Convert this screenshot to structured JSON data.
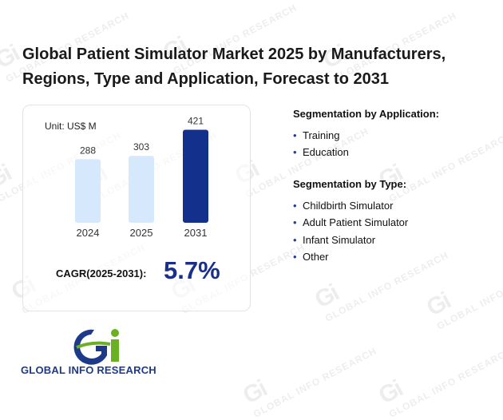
{
  "title": "Global Patient Simulator Market 2025 by Manufacturers, Regions, Type and Application, Forecast to 2031",
  "unit_label": "Unit: US$ M",
  "chart_data": {
    "type": "bar",
    "categories": [
      "2024",
      "2025",
      "2031"
    ],
    "values": [
      288,
      303,
      421
    ],
    "colors": [
      "#d6e8fb",
      "#d6e8fb",
      "#13318c"
    ],
    "title": "",
    "xlabel": "",
    "ylabel": "",
    "ylim": [
      0,
      470
    ],
    "grid": false
  },
  "cagr": {
    "label": "CAGR(2025-2031):",
    "value": "5.7%"
  },
  "segments": {
    "application": {
      "title": "Segmentation by Application:",
      "items": [
        "Training",
        "Education"
      ]
    },
    "type": {
      "title": "Segmentation by Type:",
      "items": [
        "Childbirth Simulator",
        "Adult Patient Simulator",
        "Infant Simulator",
        "Other"
      ]
    }
  },
  "logo": {
    "text": "GLOBAL INFO RESEARCH"
  },
  "watermark": {
    "text": "GLOBAL INFO RESEARCH",
    "mark": "Gi"
  },
  "colors": {
    "accent": "#1a2f8a",
    "bullet": "#2b3b8f",
    "logo_green": "#6ab023"
  }
}
